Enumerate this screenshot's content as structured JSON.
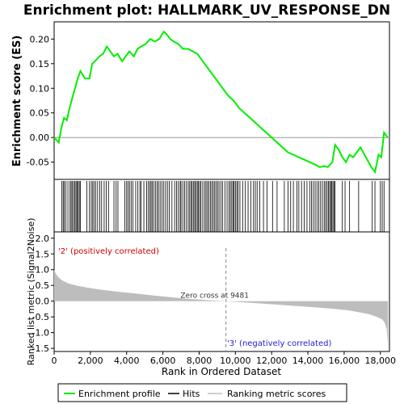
{
  "chart_data": {
    "type": "line",
    "title": "Enrichment plot: HALLMARK_UV_RESPONSE_DN",
    "xlabel": "Rank in Ordered Dataset",
    "ylabel_top": "Enrichment score (ES)",
    "ylabel_bottom": "Ranked list metric (Signal2Noise)",
    "xlim": [
      0,
      18500
    ],
    "x_ticks": [
      0,
      2000,
      4000,
      6000,
      8000,
      10000,
      12000,
      14000,
      16000,
      18000
    ],
    "x_tick_labels": [
      "0",
      "2,000",
      "4,000",
      "6,000",
      "8,000",
      "10,000",
      "12,000",
      "14,000",
      "16,000",
      "18,000"
    ],
    "es_ylim": [
      -0.085,
      0.235
    ],
    "es_ticks": [
      -0.05,
      0.0,
      0.05,
      0.1,
      0.15,
      0.2
    ],
    "es_tick_labels": [
      "-0.05",
      "0.00",
      "0.05",
      "0.10",
      "0.15",
      "0.20"
    ],
    "metric_ylim": [
      -1.6,
      2.2
    ],
    "metric_ticks": [
      -1.5,
      -1.0,
      -0.5,
      0.0,
      0.5,
      1.0,
      1.5,
      2.0
    ],
    "metric_tick_labels": [
      "-1.5",
      "-1.0",
      "-0.5",
      "0.0",
      "0.5",
      "1.0",
      "1.5",
      "2.0"
    ],
    "enrichment_profile": {
      "x": [
        0,
        250,
        400,
        550,
        700,
        850,
        1000,
        1150,
        1300,
        1450,
        1700,
        1950,
        2100,
        2250,
        2500,
        2700,
        2900,
        3100,
        3300,
        3500,
        3750,
        3950,
        4150,
        4400,
        4600,
        4800,
        5050,
        5300,
        5550,
        5800,
        6050,
        6200,
        6400,
        6600,
        6850,
        7100,
        7400,
        7650,
        7900,
        8100,
        8400,
        8700,
        9000,
        9300,
        9600,
        9900,
        10200,
        10500,
        10800,
        11100,
        11400,
        11700,
        12000,
        12300,
        12600,
        12900,
        13200,
        13500,
        13800,
        14100,
        14400,
        14650,
        14900,
        15100,
        15350,
        15500,
        15700,
        15900,
        16100,
        16300,
        16500,
        16700,
        16900,
        17200,
        17500,
        17700,
        17900,
        18050,
        18200,
        18400
      ],
      "y": [
        0.0,
        -0.01,
        0.02,
        0.04,
        0.035,
        0.06,
        0.08,
        0.1,
        0.12,
        0.135,
        0.12,
        0.12,
        0.15,
        0.155,
        0.165,
        0.17,
        0.185,
        0.175,
        0.165,
        0.17,
        0.155,
        0.165,
        0.175,
        0.165,
        0.18,
        0.185,
        0.19,
        0.2,
        0.195,
        0.2,
        0.215,
        0.21,
        0.2,
        0.195,
        0.19,
        0.18,
        0.18,
        0.175,
        0.17,
        0.16,
        0.145,
        0.13,
        0.115,
        0.1,
        0.085,
        0.075,
        0.06,
        0.05,
        0.04,
        0.03,
        0.02,
        0.01,
        0.0,
        -0.01,
        -0.02,
        -0.03,
        -0.035,
        -0.04,
        -0.045,
        -0.05,
        -0.055,
        -0.06,
        -0.058,
        -0.06,
        -0.05,
        -0.015,
        -0.025,
        -0.04,
        -0.05,
        -0.035,
        -0.04,
        -0.03,
        -0.02,
        -0.04,
        -0.06,
        -0.07,
        -0.035,
        -0.04,
        0.01,
        0.0
      ]
    },
    "hits": [
      420,
      500,
      560,
      650,
      760,
      880,
      940,
      1010,
      1080,
      1150,
      1210,
      1270,
      1330,
      1390,
      1450,
      1800,
      1950,
      2050,
      2130,
      2200,
      2290,
      2400,
      2520,
      2620,
      2760,
      2880,
      3000,
      3300,
      3420,
      3520,
      3900,
      4000,
      4080,
      4160,
      4250,
      4350,
      4500,
      4620,
      4730,
      4800,
      4950,
      5100,
      5200,
      5280,
      5350,
      5420,
      5500,
      5600,
      5680,
      5760,
      5850,
      5950,
      6050,
      6150,
      6250,
      6350,
      6500,
      6650,
      6750,
      6850,
      6950,
      7000,
      7100,
      7200,
      7300,
      7400,
      7480,
      7560,
      7620,
      7700,
      7760,
      7830,
      7900,
      7960,
      8030,
      8100,
      8200,
      8300,
      8380,
      8460,
      8540,
      8620,
      8700,
      8780,
      8860,
      8940,
      9020,
      9100,
      9200,
      9300,
      9420,
      9540,
      9640,
      9720,
      9800,
      9870,
      9930,
      10000,
      10080,
      10150,
      10250,
      10400,
      10550,
      10700,
      10850,
      11000,
      11100,
      11200,
      11350,
      11550,
      11750,
      12050,
      12300,
      12700,
      12900,
      13050,
      13200,
      13400,
      13500,
      13650,
      13800,
      13950,
      14100,
      14200,
      14300,
      14400,
      14500,
      14600,
      14700,
      14800,
      14900,
      14980,
      15060,
      15130,
      15200,
      15260,
      15320,
      15380,
      15440,
      15500,
      15900,
      16050,
      16300,
      16800,
      17550,
      17700,
      18000,
      18100,
      18200
    ],
    "zero_cross_label": "Zero cross at 9481",
    "zero_cross_rank": 9481,
    "pos_label": "'2' (positively correlated)",
    "neg_label": "'3' (negatively correlated)",
    "metric_curve": {
      "x": [
        0,
        50,
        150,
        300,
        500,
        800,
        1200,
        1800,
        2500,
        3500,
        4500,
        5500,
        6500,
        7500,
        8500,
        9481,
        10500,
        11500,
        12500,
        13500,
        14500,
        15500,
        16300,
        16900,
        17400,
        17800,
        18100,
        18250,
        18350,
        18420
      ],
      "y": [
        1.0,
        0.92,
        0.82,
        0.72,
        0.64,
        0.56,
        0.5,
        0.43,
        0.37,
        0.3,
        0.24,
        0.18,
        0.12,
        0.07,
        0.03,
        0.0,
        -0.04,
        -0.08,
        -0.12,
        -0.16,
        -0.2,
        -0.25,
        -0.3,
        -0.36,
        -0.42,
        -0.5,
        -0.58,
        -0.7,
        -0.9,
        -1.45
      ]
    },
    "legend": [
      "Enrichment profile",
      "Hits",
      "Ranking metric scores"
    ],
    "colors": {
      "profile": "#00ee00",
      "hits": "#000000",
      "metric_fill": "#bdbdbd",
      "pos_text": "#cc0000",
      "neg_text": "#2222cc",
      "zero_line": "#888888"
    }
  }
}
